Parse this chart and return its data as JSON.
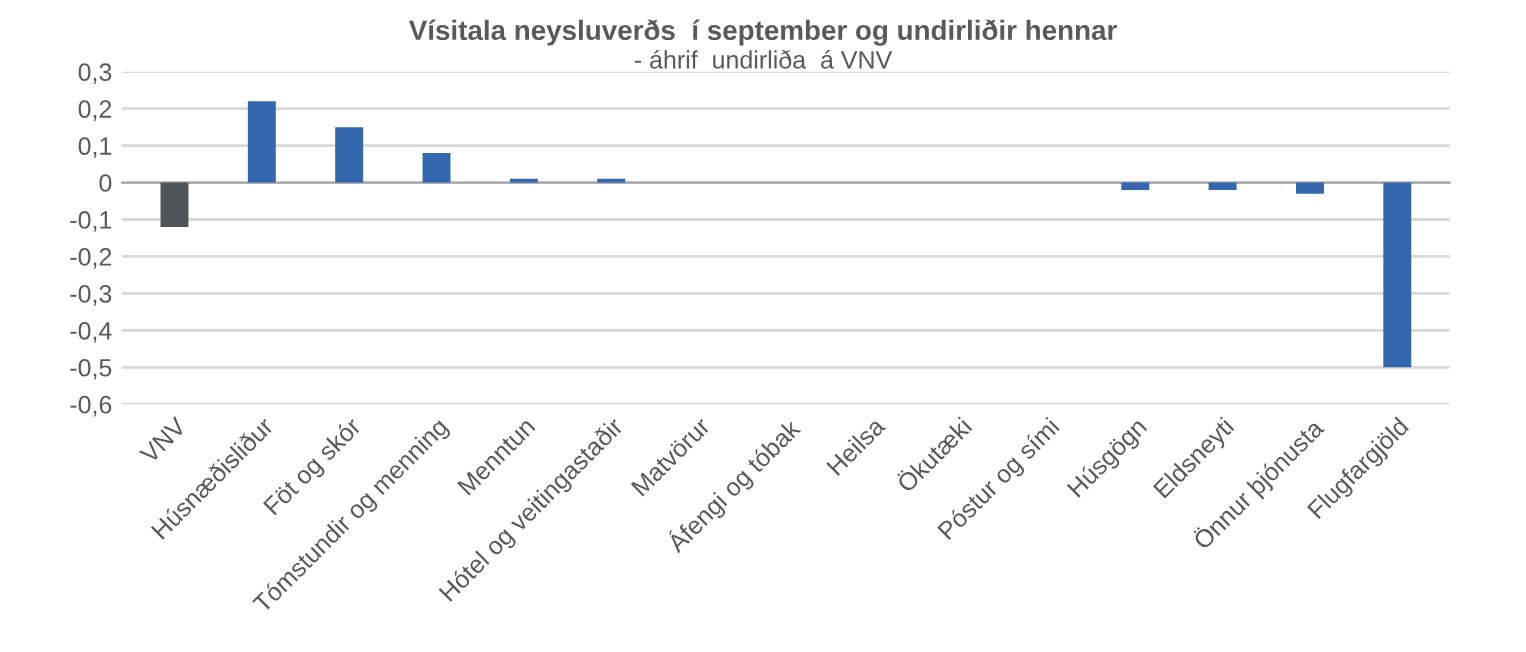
{
  "chart_data": {
    "type": "bar",
    "title": "Vísitala neysluverðs  í september og undirliðir hennar",
    "subtitle": "- áhrif  undirliða  á VNV",
    "categories": [
      "VNV",
      "Húsnæðisliður",
      "Föt og skór",
      "Tómstundir og menning",
      "Menntun",
      "Hótel og veitingastaðir",
      "Matvörur",
      "Áfengi og tóbak",
      "Heilsa",
      "Ökutæki",
      "Póstur og sími",
      "Húsgögn",
      "Eldsneyti",
      "Önnur þjónusta",
      "Flugfargjöld"
    ],
    "values": [
      -0.12,
      0.22,
      0.15,
      0.08,
      0.01,
      0.01,
      0,
      0,
      0,
      0,
      0,
      -0.02,
      -0.02,
      -0.03,
      -0.5
    ],
    "colors": [
      "#4f5459",
      "#3468ae",
      "#3468ae",
      "#3468ae",
      "#3468ae",
      "#3468ae",
      "#3468ae",
      "#3468ae",
      "#3468ae",
      "#3468ae",
      "#3468ae",
      "#3468ae",
      "#3468ae",
      "#3468ae",
      "#3468ae"
    ],
    "ylim": [
      -0.6,
      0.3
    ],
    "yticks": [
      {
        "value": -0.6,
        "label": "-0,6"
      },
      {
        "value": -0.5,
        "label": "-0,5"
      },
      {
        "value": -0.4,
        "label": "-0,4"
      },
      {
        "value": -0.3,
        "label": "-0,3"
      },
      {
        "value": -0.2,
        "label": "-0,2"
      },
      {
        "value": -0.1,
        "label": "-0,1"
      },
      {
        "value": 0,
        "label": "0"
      },
      {
        "value": 0.1,
        "label": "0,1"
      },
      {
        "value": 0.2,
        "label": "0,2"
      },
      {
        "value": 0.3,
        "label": "0,3"
      }
    ],
    "grid": "y",
    "legend": false
  }
}
